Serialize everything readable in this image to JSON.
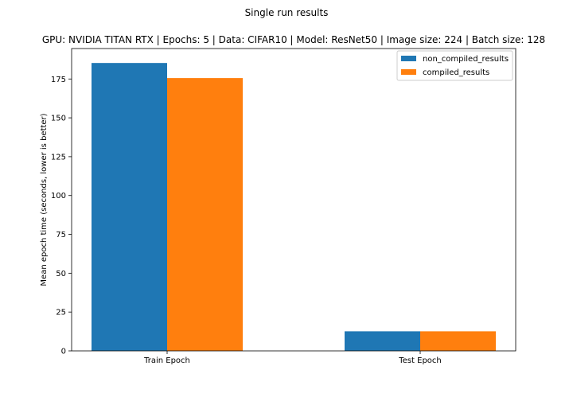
{
  "chart_data": {
    "type": "bar",
    "suptitle": "Single run results",
    "title": "GPU: NVIDIA TITAN RTX | Epochs: 5 | Data: CIFAR10 | Model: ResNet50 | Image size: 224 | Batch size: 128",
    "xlabel": "",
    "ylabel": "Mean epoch time (seconds, lower is better)",
    "categories": [
      "Train Epoch",
      "Test Epoch"
    ],
    "series": [
      {
        "name": "non_compiled_results",
        "color": "#1f77b4",
        "values": [
          185.3,
          12.6
        ]
      },
      {
        "name": "compiled_results",
        "color": "#ff7f0e",
        "values": [
          175.6,
          12.6
        ]
      }
    ],
    "ylim": [
      0,
      194.6
    ],
    "yticks": [
      0,
      25,
      50,
      75,
      100,
      125,
      150,
      175
    ],
    "grid": false,
    "legend_position": "top-right"
  }
}
